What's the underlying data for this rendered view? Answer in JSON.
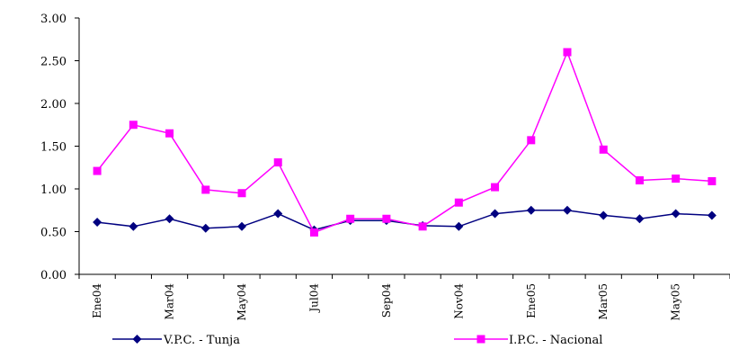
{
  "chart_data": {
    "type": "line",
    "title": "",
    "xlabel": "",
    "ylabel": "",
    "ylim": [
      0,
      3
    ],
    "y_ticks": [
      "0.00",
      "0.50",
      "1.00",
      "1.50",
      "2.00",
      "2.50",
      "3.00"
    ],
    "grid": false,
    "legend_position": "bottom",
    "x_labels": [
      "Ene04",
      "Mar04",
      "May04",
      "Jul04",
      "Sep04",
      "Nov04",
      "Ene05",
      "Mar05",
      "May05"
    ],
    "series": [
      {
        "name": "V.P.C. - Tunja",
        "color": "#000080",
        "marker": "diamond",
        "values": [
          0.61,
          0.56,
          0.65,
          0.54,
          0.56,
          0.71,
          0.52,
          0.63,
          0.63,
          0.57,
          0.56,
          0.71,
          0.75,
          0.75,
          0.69,
          0.65,
          0.71,
          0.69
        ]
      },
      {
        "name": "I.P.C. - Nacional",
        "color": "#ff00ff",
        "marker": "square",
        "values": [
          1.21,
          1.75,
          1.65,
          0.99,
          0.95,
          1.31,
          0.49,
          0.65,
          0.65,
          0.56,
          0.84,
          1.02,
          1.57,
          2.6,
          1.46,
          1.1,
          1.12,
          1.09
        ]
      }
    ]
  }
}
